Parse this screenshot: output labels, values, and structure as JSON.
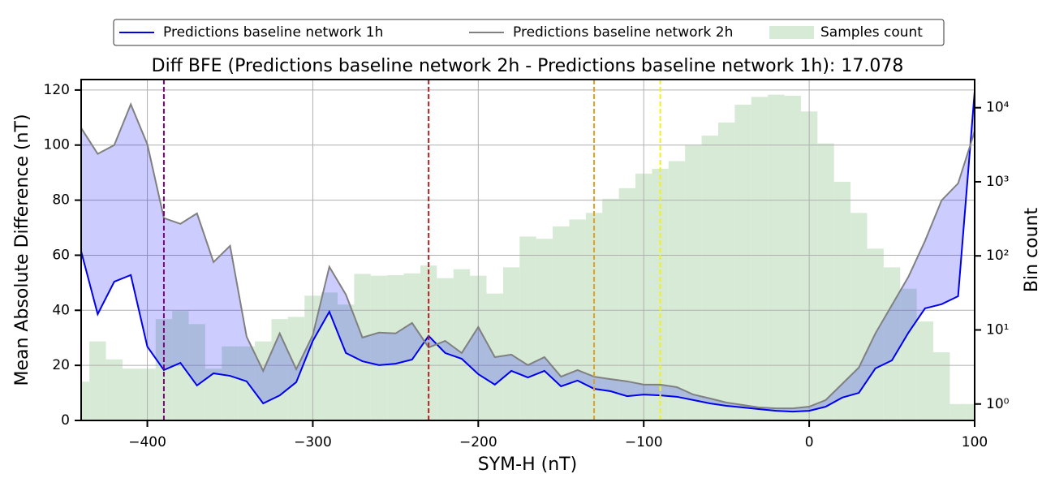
{
  "chart_data": {
    "type": "line",
    "title": "Diff BFE (Predictions baseline network 2h - Predictions baseline network 1h): 17.078",
    "xlabel": "SYM-H (nT)",
    "ylabel": "Mean Absolute Difference (nT)",
    "y2label": "Bin count",
    "grid": true,
    "legend": "upper center",
    "xlim": [
      -440,
      100
    ],
    "xticks": [
      {
        "value": -400,
        "label": "−400"
      },
      {
        "value": -300,
        "label": "−300"
      },
      {
        "value": -200,
        "label": "−200"
      },
      {
        "value": -100,
        "label": "−100"
      },
      0,
      100
    ],
    "ylim": [
      0,
      123.8
    ],
    "yticks": [
      0,
      20,
      40,
      60,
      80,
      100,
      120
    ],
    "y2_scale": "log",
    "y2lim": [
      0.6,
      24000
    ],
    "y2ticks": [
      {
        "value": 1,
        "label": "10⁰"
      },
      {
        "value": 10,
        "label": "10¹"
      },
      {
        "value": 100,
        "label": "10²"
      },
      {
        "value": 1000,
        "label": "10³"
      },
      {
        "value": 10000,
        "label": "10⁴"
      }
    ],
    "x": [
      -440,
      -430,
      -420,
      -410,
      -400,
      -390,
      -380,
      -370,
      -360,
      -350,
      -340,
      -330,
      -320,
      -310,
      -300,
      -290,
      -280,
      -270,
      -260,
      -250,
      -240,
      -230,
      -220,
      -210,
      -200,
      -190,
      -180,
      -170,
      -160,
      -150,
      -140,
      -130,
      -120,
      -110,
      -100,
      -90,
      -80,
      -70,
      -60,
      -50,
      -40,
      -30,
      -20,
      -10,
      0,
      10,
      20,
      30,
      40,
      50,
      60,
      70,
      80,
      90,
      100
    ],
    "series": [
      {
        "name": "Predictions baseline network 1h",
        "color": "#0000ee",
        "values": [
          61.4,
          38.6,
          50.4,
          52.8,
          26.8,
          18.3,
          20.9,
          12.7,
          17.1,
          16.2,
          14.2,
          6.2,
          9.1,
          13.9,
          28.9,
          39.5,
          24.5,
          21.5,
          20.1,
          20.6,
          22.1,
          30.7,
          24.5,
          22.4,
          16.8,
          13,
          18,
          15.6,
          18,
          12.4,
          14.5,
          11.5,
          10.6,
          8.8,
          9.4,
          9.1,
          8.6,
          7.4,
          6.2,
          5.3,
          4.7,
          4.1,
          3.5,
          3.2,
          3.5,
          5,
          8.3,
          10,
          18.9,
          21.8,
          31.9,
          40.7,
          42.2,
          45.1,
          119.5
        ]
      },
      {
        "name": "Predictions baseline network 2h",
        "color": "#808080",
        "values": [
          106.2,
          96.8,
          100,
          114.8,
          100.3,
          73.5,
          71.4,
          75.2,
          57.5,
          63.4,
          30.4,
          18,
          31.6,
          18.6,
          31,
          55.8,
          45.7,
          30.1,
          31.9,
          31.6,
          35.4,
          26.5,
          28.9,
          24.5,
          33.9,
          23,
          23.9,
          20.1,
          23,
          15.9,
          18.3,
          15.9,
          15,
          14.2,
          13,
          13,
          12.1,
          9.4,
          8,
          6.5,
          5.6,
          4.7,
          4.4,
          4.4,
          5,
          7.4,
          13.3,
          19.2,
          31.6,
          41.9,
          52.2,
          65.2,
          79.9,
          86.1,
          105
        ]
      }
    ],
    "fill_color": "#0000ff",
    "histogram": {
      "name": "Samples count",
      "color": "#d6ead6",
      "axis": "y2",
      "bins": [
        -445,
        -435,
        -425,
        -415,
        -405,
        -395,
        -385,
        -375,
        -365,
        -355,
        -345,
        -335,
        -325,
        -315,
        -305,
        -295,
        -285,
        -275,
        -265,
        -255,
        -245,
        -235,
        -225,
        -215,
        -205,
        -195,
        -185,
        -175,
        -165,
        -155,
        -145,
        -135,
        -125,
        -115,
        -105,
        -95,
        -85,
        -75,
        -65,
        -55,
        -45,
        -35,
        -25,
        -15,
        -5,
        5,
        15,
        25,
        35,
        45,
        55,
        65,
        75,
        85,
        95,
        105
      ],
      "counts": [
        2,
        7,
        4,
        3,
        3,
        14,
        18,
        12,
        3,
        6,
        6,
        7,
        14,
        15,
        29,
        32,
        22,
        57,
        54,
        55,
        58,
        74,
        50,
        66,
        54,
        31,
        70,
        182,
        170,
        250,
        310,
        380,
        590,
        820,
        1290,
        1500,
        1900,
        3100,
        4200,
        6300,
        11000,
        14000,
        15000,
        14500,
        8900,
        3300,
        1000,
        380,
        125,
        70,
        36,
        13,
        5,
        1,
        1
      ]
    },
    "vlines": [
      {
        "x": -390,
        "color": "#800080"
      },
      {
        "x": -230,
        "color": "#b22222"
      },
      {
        "x": -130,
        "color": "#e0a020"
      },
      {
        "x": -90,
        "color": "#f0f020"
      }
    ]
  }
}
